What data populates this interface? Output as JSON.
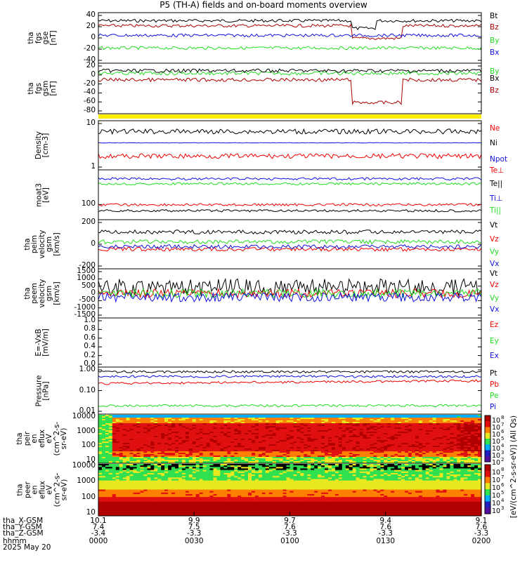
{
  "title": "P5 (TH-A) fields and on-board moments overview",
  "colors": {
    "black": "#000000",
    "red": "#ee0000",
    "green": "#22dd22",
    "blue": "#1010dd",
    "darkred": "#aa0000",
    "yellow": "#ffee00"
  },
  "chart_data": [
    {
      "type": "line",
      "panel": "fgs_gse",
      "ylabel": "tha\nfgs\ngse\n[nT]",
      "ylim": [
        -45,
        50
      ],
      "yticks": [
        "40",
        "20",
        "0",
        "-20",
        "-40"
      ],
      "series": [
        {
          "name": "Bt",
          "color": "black",
          "base": 37
        },
        {
          "name": "Bz",
          "color": "darkred",
          "base": 30
        },
        {
          "name": "By",
          "color": "green",
          "base": -15
        },
        {
          "name": "Bx",
          "color": "blue",
          "base": 8
        }
      ]
    },
    {
      "type": "line",
      "panel": "fgs_gsm",
      "ylabel": "tha\nfgs\ngsm\n[nT]",
      "ylim": [
        -95,
        25
      ],
      "yticks": [
        "20",
        "0",
        "-20",
        "-40",
        "-60",
        "-80"
      ],
      "series": [
        {
          "name": "By",
          "color": "green",
          "base": -10
        },
        {
          "name": "Bx",
          "color": "black",
          "base": 0
        },
        {
          "name": "Bz",
          "color": "darkred",
          "base": -15
        }
      ]
    },
    {
      "type": "line",
      "panel": "density",
      "ylabel": "Density\n[cm-3]",
      "scale": "log",
      "ylim": [
        0.4,
        40
      ],
      "yticks": [
        "10",
        "1"
      ],
      "series": [
        {
          "name": "Ne",
          "color": "red",
          "base": 1.6
        },
        {
          "name": "Ni",
          "color": "black",
          "base": 12
        },
        {
          "name": "Npot",
          "color": "blue",
          "base": 4.5
        }
      ]
    },
    {
      "type": "line",
      "panel": "temperature",
      "ylabel": "moat3\n[eV]",
      "scale": "log",
      "ylim": [
        40,
        6000
      ],
      "yticks": [
        "100"
      ],
      "series": [
        {
          "name": "Te⊥",
          "color": "red",
          "base": 80
        },
        {
          "name": "Te||",
          "color": "black",
          "base": 55
        },
        {
          "name": "Ti⊥",
          "color": "blue",
          "base": 1900
        },
        {
          "name": "Ti||",
          "color": "green",
          "base": 1500
        }
      ]
    },
    {
      "type": "line",
      "panel": "peim_velocity",
      "ylabel": "tha\npeim\nvelocity\ngsm\n[km/s]",
      "ylim": [
        -300,
        300
      ],
      "yticks": [
        "200",
        "0",
        "-200"
      ],
      "series": [
        {
          "name": "Vt",
          "color": "black",
          "base": 180
        },
        {
          "name": "Vz",
          "color": "red",
          "base": -60
        },
        {
          "name": "Vy",
          "color": "green",
          "base": 80
        },
        {
          "name": "Vx",
          "color": "blue",
          "base": -20
        }
      ]
    },
    {
      "type": "line",
      "panel": "peem_velocity",
      "ylabel": "tha\npeem\nvelocity\ngsm\n[km/s]",
      "ylim": [
        -1500,
        1500
      ],
      "yticks": [
        "1500",
        "1000",
        "500",
        "0",
        "-500",
        "-1000",
        "-1500"
      ],
      "series": [
        {
          "name": "Vt",
          "color": "black",
          "base": 500
        },
        {
          "name": "Vz",
          "color": "red",
          "base": 0
        },
        {
          "name": "Vy",
          "color": "green",
          "base": 0
        },
        {
          "name": "Vx",
          "color": "blue",
          "base": -100
        }
      ]
    },
    {
      "type": "line",
      "panel": "efield",
      "ylabel": "E=-VxB\n[mV/m]",
      "ylim": [
        0,
        1
      ],
      "yticks": [
        "1.0",
        "0.8",
        "0.6",
        "0.4",
        "0.2",
        "0.0"
      ],
      "series": [
        {
          "name": "Ez",
          "color": "red"
        },
        {
          "name": "Ey",
          "color": "green"
        },
        {
          "name": "Ex",
          "color": "blue"
        }
      ]
    },
    {
      "type": "line",
      "panel": "pressure",
      "ylabel": "Pressure\n[nPa]",
      "scale": "log",
      "ylim": [
        0.003,
        1.5
      ],
      "yticks": [
        "1.00",
        "0.10",
        "0.01"
      ],
      "series": [
        {
          "name": "Pt",
          "color": "black",
          "base": 0.6
        },
        {
          "name": "Pb",
          "color": "red",
          "base": 0.35
        },
        {
          "name": "Pe",
          "color": "green",
          "base": 0.012
        },
        {
          "name": "Pi",
          "color": "blue",
          "base": 0.45
        }
      ]
    },
    {
      "type": "heatmap",
      "panel": "peir",
      "ylabel": "tha\npeir\nen\neflux\neV\n(cm^2-s-\nsr-eV)",
      "yticks": [
        "10000",
        "1000",
        "100",
        "10"
      ]
    },
    {
      "type": "heatmap",
      "panel": "peer",
      "ylabel": "tha\npeer\nen\neflux\neV\n(cm^2-s-\nsr-eV)",
      "yticks": [
        "10000",
        "1000",
        "100",
        "10"
      ]
    }
  ],
  "colorbar": {
    "label": "[eV/(cm^2-s-sr-eV)] (All Qs)",
    "top_ticks": [
      "10",
      "10",
      "10",
      "10",
      "10",
      "10",
      "10"
    ],
    "top_exps": [
      "8",
      "7",
      "6",
      "5",
      "4",
      "3",
      "2"
    ],
    "bottom_ticks": [
      "10",
      "10",
      "10",
      "10",
      "10",
      "10"
    ],
    "bottom_exps": [
      "8",
      "7",
      "6",
      "5",
      "4",
      "3"
    ]
  },
  "xaxis": {
    "row_labels": [
      "tha_X-GSM",
      "tha_Y-GSM",
      "tha_Z-GSM",
      "hhmm",
      "2025 May 20"
    ],
    "columns": [
      {
        "x": "10.1",
        "y": "7.4",
        "z": "-3.4",
        "t": "0000"
      },
      {
        "x": "9.9",
        "y": "7.5",
        "z": "-3.3",
        "t": "0030"
      },
      {
        "x": "9.7",
        "y": "7.6",
        "z": "-3.3",
        "t": "0100"
      },
      {
        "x": "9.4",
        "y": "7.6",
        "z": "-3.3",
        "t": "0130"
      },
      {
        "x": "9.1",
        "y": "7.6",
        "z": "-3.3",
        "t": "0200"
      }
    ]
  }
}
